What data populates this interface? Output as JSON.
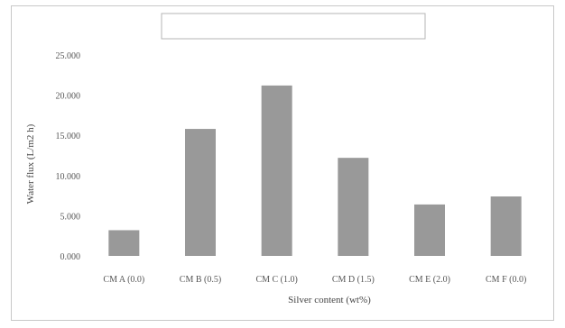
{
  "chart_data": {
    "type": "bar",
    "title": "",
    "xlabel": "Silver content (wt%)",
    "ylabel": "Water flux (L/m2 h)",
    "categories": [
      "CM A (0.0)",
      "CM B (0.5)",
      "CM C (1.0)",
      "CM D (1.5)",
      "CM E (2.0)",
      "CM F (0.0)"
    ],
    "values": [
      3.2,
      15.8,
      21.2,
      12.2,
      6.4,
      7.4
    ],
    "y_ticks": [
      "0.000",
      "5.000",
      "10.000",
      "15.000",
      "20.000",
      "25.000"
    ],
    "ylim": [
      0,
      25
    ],
    "grid": false,
    "legend": "none",
    "bar_color": "#999999",
    "title_box": "empty box at top center"
  }
}
